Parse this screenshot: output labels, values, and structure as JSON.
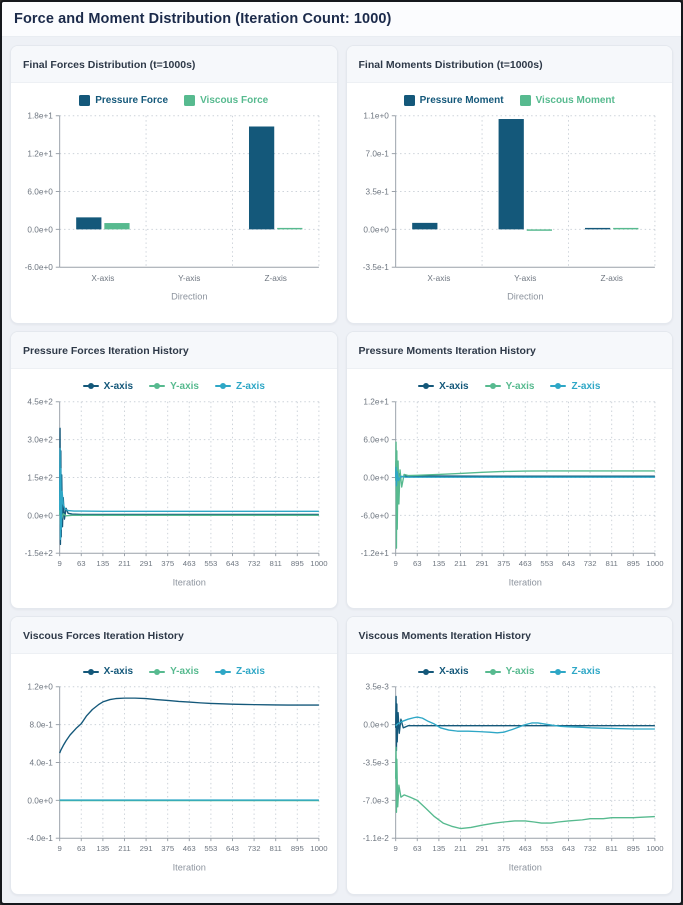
{
  "page_title": "Force and Moment Distribution (Iteration Count: 1000)",
  "colors": {
    "x_axis_series": "#14587a",
    "y_axis_series": "#57ba8f",
    "z_axis_series": "#2ea7c6",
    "title_text": "#1b2a4a",
    "page_background": "#eef1f6"
  },
  "chart_data": [
    {
      "type": "bar",
      "panel_title": "Final Forces Distribution (t=1000s)",
      "categories": [
        "X-axis",
        "Y-axis",
        "Z-axis"
      ],
      "xlabel": "Direction",
      "ylim": [
        -6,
        18
      ],
      "yticks": [
        -6,
        0,
        6,
        12,
        18
      ],
      "ytick_labels": [
        "-6.0e+0",
        "0.0e+0",
        "6.0e+0",
        "1.2e+1",
        "1.8e+1"
      ],
      "series": [
        {
          "name": "Pressure Force",
          "color": "#14587a",
          "values": [
            1.9,
            0,
            16.3
          ]
        },
        {
          "name": "Viscous Force",
          "color": "#57ba8f",
          "values": [
            1.0,
            0,
            0.05
          ]
        }
      ]
    },
    {
      "type": "bar",
      "panel_title": "Final Moments Distribution (t=1000s)",
      "categories": [
        "X-axis",
        "Y-axis",
        "Z-axis"
      ],
      "xlabel": "Direction",
      "ylim": [
        -0.35,
        1.05
      ],
      "yticks": [
        -0.35,
        0,
        0.35,
        0.7,
        1.05
      ],
      "ytick_labels": [
        "-3.5e-1",
        "0.0e+0",
        "3.5e-1",
        "7.0e-1",
        "1.1e+0"
      ],
      "series": [
        {
          "name": "Pressure Moment",
          "color": "#14587a",
          "values": [
            0.06,
            1.02,
            0.005
          ]
        },
        {
          "name": "Viscous Moment",
          "color": "#57ba8f",
          "values": [
            0,
            -0.012,
            0.003
          ]
        }
      ]
    },
    {
      "type": "line",
      "panel_title": "Pressure Forces Iteration History",
      "xlabel": "Iteration",
      "xticks": [
        9,
        63,
        135,
        211,
        291,
        375,
        463,
        553,
        643,
        732,
        811,
        895,
        1000
      ],
      "ylim": [
        -150,
        450
      ],
      "yticks": [
        -150,
        0,
        150,
        300,
        450
      ],
      "ytick_labels": [
        "-1.5e+2",
        "0.0e+0",
        "1.5e+2",
        "3.0e+2",
        "4.5e+2"
      ],
      "series": [
        {
          "name": "X-axis",
          "color": "#14587a",
          "points": [
            [
              9,
              60
            ],
            [
              10,
              345
            ],
            [
              11,
              -115
            ],
            [
              12,
              255
            ],
            [
              13,
              -85
            ],
            [
              14,
              160
            ],
            [
              16,
              -45
            ],
            [
              18,
              70
            ],
            [
              21,
              -15
            ],
            [
              25,
              28
            ],
            [
              30,
              8
            ],
            [
              40,
              5
            ],
            [
              63,
              4
            ],
            [
              135,
              4
            ],
            [
              291,
              4
            ],
            [
              553,
              4
            ],
            [
              732,
              4
            ],
            [
              1000,
              4
            ]
          ]
        },
        {
          "name": "Y-axis",
          "color": "#57ba8f",
          "points": [
            [
              9,
              0
            ],
            [
              10,
              45
            ],
            [
              11,
              -35
            ],
            [
              12,
              22
            ],
            [
              14,
              -12
            ],
            [
              18,
              6
            ],
            [
              25,
              -2
            ],
            [
              40,
              0
            ],
            [
              63,
              0
            ],
            [
              291,
              0
            ],
            [
              1000,
              0
            ]
          ]
        },
        {
          "name": "Z-axis",
          "color": "#2ea7c6",
          "points": [
            [
              9,
              20
            ],
            [
              10,
              265
            ],
            [
              11,
              -95
            ],
            [
              12,
              185
            ],
            [
              13,
              -55
            ],
            [
              15,
              95
            ],
            [
              18,
              45
            ],
            [
              22,
              25
            ],
            [
              30,
              19
            ],
            [
              45,
              17
            ],
            [
              63,
              17
            ],
            [
              135,
              16
            ],
            [
              291,
              16
            ],
            [
              553,
              16
            ],
            [
              1000,
              16
            ]
          ]
        }
      ]
    },
    {
      "type": "line",
      "panel_title": "Pressure Moments Iteration History",
      "xlabel": "Iteration",
      "xticks": [
        9,
        63,
        135,
        211,
        291,
        375,
        463,
        553,
        643,
        732,
        811,
        895,
        1000
      ],
      "ylim": [
        -12,
        12
      ],
      "yticks": [
        -12,
        -6,
        0,
        6,
        12
      ],
      "ytick_labels": [
        "-1.2e+1",
        "-6.0e+0",
        "0.0e+0",
        "6.0e+0",
        "1.2e+1"
      ],
      "series": [
        {
          "name": "X-axis",
          "color": "#14587a",
          "points": [
            [
              9,
              0.3
            ],
            [
              10,
              2.6
            ],
            [
              11,
              -2.1
            ],
            [
              12,
              1.6
            ],
            [
              14,
              -1.0
            ],
            [
              17,
              0.6
            ],
            [
              22,
              0.1
            ],
            [
              35,
              0.25
            ],
            [
              63,
              0.25
            ],
            [
              291,
              0.2
            ],
            [
              1000,
              0.2
            ]
          ]
        },
        {
          "name": "Y-axis",
          "color": "#57ba8f",
          "points": [
            [
              9,
              -0.5
            ],
            [
              10,
              5.6
            ],
            [
              11,
              -11.2
            ],
            [
              12,
              4.2
            ],
            [
              13,
              -8.2
            ],
            [
              15,
              2.6
            ],
            [
              17,
              -4.2
            ],
            [
              20,
              1.2
            ],
            [
              24,
              -1.5
            ],
            [
              30,
              0.5
            ],
            [
              40,
              0.3
            ],
            [
              63,
              0.35
            ],
            [
              135,
              0.5
            ],
            [
              211,
              0.65
            ],
            [
              291,
              0.82
            ],
            [
              375,
              0.95
            ],
            [
              463,
              1.02
            ],
            [
              553,
              1.05
            ],
            [
              643,
              1.05
            ],
            [
              732,
              1.04
            ],
            [
              811,
              1.04
            ],
            [
              895,
              1.03
            ],
            [
              1000,
              1.03
            ]
          ]
        },
        {
          "name": "Z-axis",
          "color": "#2ea7c6",
          "points": [
            [
              9,
              0
            ],
            [
              10,
              1.6
            ],
            [
              11,
              -1.3
            ],
            [
              13,
              0.9
            ],
            [
              16,
              -0.5
            ],
            [
              22,
              0.2
            ],
            [
              35,
              0.05
            ],
            [
              63,
              0.05
            ],
            [
              1000,
              0.05
            ]
          ]
        }
      ]
    },
    {
      "type": "line",
      "panel_title": "Viscous Forces Iteration History",
      "xlabel": "Iteration",
      "xticks": [
        9,
        63,
        135,
        211,
        291,
        375,
        463,
        553,
        643,
        732,
        811,
        895,
        1000
      ],
      "ylim": [
        -0.4,
        1.2
      ],
      "yticks": [
        -0.4,
        0,
        0.4,
        0.8,
        1.2
      ],
      "ytick_labels": [
        "-4.0e-1",
        "0.0e+0",
        "4.0e-1",
        "8.0e-1",
        "1.2e+0"
      ],
      "series": [
        {
          "name": "X-axis",
          "color": "#14587a",
          "points": [
            [
              9,
              0.5
            ],
            [
              12,
              0.53
            ],
            [
              18,
              0.58
            ],
            [
              25,
              0.63
            ],
            [
              35,
              0.69
            ],
            [
              50,
              0.76
            ],
            [
              63,
              0.81
            ],
            [
              80,
              0.89
            ],
            [
              100,
              0.96
            ],
            [
              120,
              1.01
            ],
            [
              135,
              1.04
            ],
            [
              160,
              1.065
            ],
            [
              180,
              1.075
            ],
            [
              211,
              1.08
            ],
            [
              250,
              1.08
            ],
            [
              291,
              1.075
            ],
            [
              330,
              1.065
            ],
            [
              375,
              1.055
            ],
            [
              420,
              1.045
            ],
            [
              463,
              1.038
            ],
            [
              510,
              1.03
            ],
            [
              553,
              1.024
            ],
            [
              600,
              1.019
            ],
            [
              643,
              1.016
            ],
            [
              690,
              1.013
            ],
            [
              732,
              1.011
            ],
            [
              780,
              1.009
            ],
            [
              811,
              1.008
            ],
            [
              860,
              1.007
            ],
            [
              895,
              1.006
            ],
            [
              950,
              1.006
            ],
            [
              1000,
              1.006
            ]
          ]
        },
        {
          "name": "Y-axis",
          "color": "#57ba8f",
          "points": [
            [
              9,
              -0.002
            ],
            [
              63,
              -0.002
            ],
            [
              291,
              -0.002
            ],
            [
              1000,
              -0.002
            ]
          ]
        },
        {
          "name": "Z-axis",
          "color": "#2ea7c6",
          "points": [
            [
              9,
              0.003
            ],
            [
              63,
              0.003
            ],
            [
              291,
              0.003
            ],
            [
              1000,
              0.003
            ]
          ]
        }
      ]
    },
    {
      "type": "line",
      "panel_title": "Viscous Moments Iteration History",
      "xlabel": "Iteration",
      "xticks": [
        9,
        63,
        135,
        211,
        291,
        375,
        463,
        553,
        643,
        732,
        811,
        895,
        1000
      ],
      "ylim": [
        -0.0105,
        0.0035
      ],
      "yticks": [
        -0.0105,
        -0.007,
        -0.0035,
        0,
        0.0035
      ],
      "ytick_labels": [
        "-1.1e-2",
        "-7.0e-3",
        "-3.5e-3",
        "0.0e+0",
        "3.5e-3"
      ],
      "series": [
        {
          "name": "X-axis",
          "color": "#14587a",
          "points": [
            [
              9,
              -0.0003
            ],
            [
              10,
              0.0026
            ],
            [
              11,
              -0.0024
            ],
            [
              12,
              0.0019
            ],
            [
              13,
              -0.0016
            ],
            [
              15,
              0.0011
            ],
            [
              18,
              -0.0008
            ],
            [
              22,
              0.0005
            ],
            [
              28,
              -0.0003
            ],
            [
              40,
              -0.0001
            ],
            [
              63,
              -0.0001
            ],
            [
              291,
              -0.0001
            ],
            [
              1000,
              -0.0001
            ]
          ]
        },
        {
          "name": "Y-axis",
          "color": "#57ba8f",
          "points": [
            [
              9,
              -0.005
            ],
            [
              10,
              -0.0021
            ],
            [
              11,
              -0.0081
            ],
            [
              12,
              -0.0032
            ],
            [
              14,
              -0.0076
            ],
            [
              17,
              -0.0056
            ],
            [
              22,
              -0.0067
            ],
            [
              30,
              -0.0065
            ],
            [
              45,
              -0.0067
            ],
            [
              63,
              -0.007
            ],
            [
              90,
              -0.0077
            ],
            [
              120,
              -0.0085
            ],
            [
              150,
              -0.0091
            ],
            [
              180,
              -0.0094
            ],
            [
              211,
              -0.0096
            ],
            [
              250,
              -0.0095
            ],
            [
              291,
              -0.0093
            ],
            [
              340,
              -0.0091
            ],
            [
              375,
              -0.009
            ],
            [
              420,
              -0.0089
            ],
            [
              463,
              -0.0089
            ],
            [
              500,
              -0.009
            ],
            [
              530,
              -0.0091
            ],
            [
              570,
              -0.0091
            ],
            [
              600,
              -0.009
            ],
            [
              643,
              -0.0089
            ],
            [
              700,
              -0.0088
            ],
            [
              732,
              -0.0087
            ],
            [
              780,
              -0.0087
            ],
            [
              811,
              -0.0086
            ],
            [
              895,
              -0.0086
            ],
            [
              1000,
              -0.0085
            ]
          ]
        },
        {
          "name": "Z-axis",
          "color": "#2ea7c6",
          "points": [
            [
              9,
              -0.0001
            ],
            [
              15,
              0.0001
            ],
            [
              25,
              0.0003
            ],
            [
              40,
              0.0005
            ],
            [
              55,
              0.00065
            ],
            [
              63,
              0.0007
            ],
            [
              80,
              0.0006
            ],
            [
              100,
              0.0003
            ],
            [
              120,
              5e-05
            ],
            [
              140,
              -0.0003
            ],
            [
              170,
              -0.0005
            ],
            [
              200,
              -0.0006
            ],
            [
              240,
              -0.0006
            ],
            [
              280,
              -0.00065
            ],
            [
              320,
              -0.0007
            ],
            [
              350,
              -0.00075
            ],
            [
              375,
              -0.0007
            ],
            [
              410,
              -0.00045
            ],
            [
              440,
              -0.0002
            ],
            [
              463,
              0
            ],
            [
              490,
              0.00015
            ],
            [
              515,
              0.00015
            ],
            [
              545,
              5e-05
            ],
            [
              575,
              -5e-05
            ],
            [
              610,
              -0.00015
            ],
            [
              643,
              -0.0002
            ],
            [
              700,
              -0.00025
            ],
            [
              732,
              -0.0003
            ],
            [
              811,
              -0.00035
            ],
            [
              895,
              -0.0004
            ],
            [
              1000,
              -0.0004
            ]
          ]
        }
      ]
    }
  ]
}
